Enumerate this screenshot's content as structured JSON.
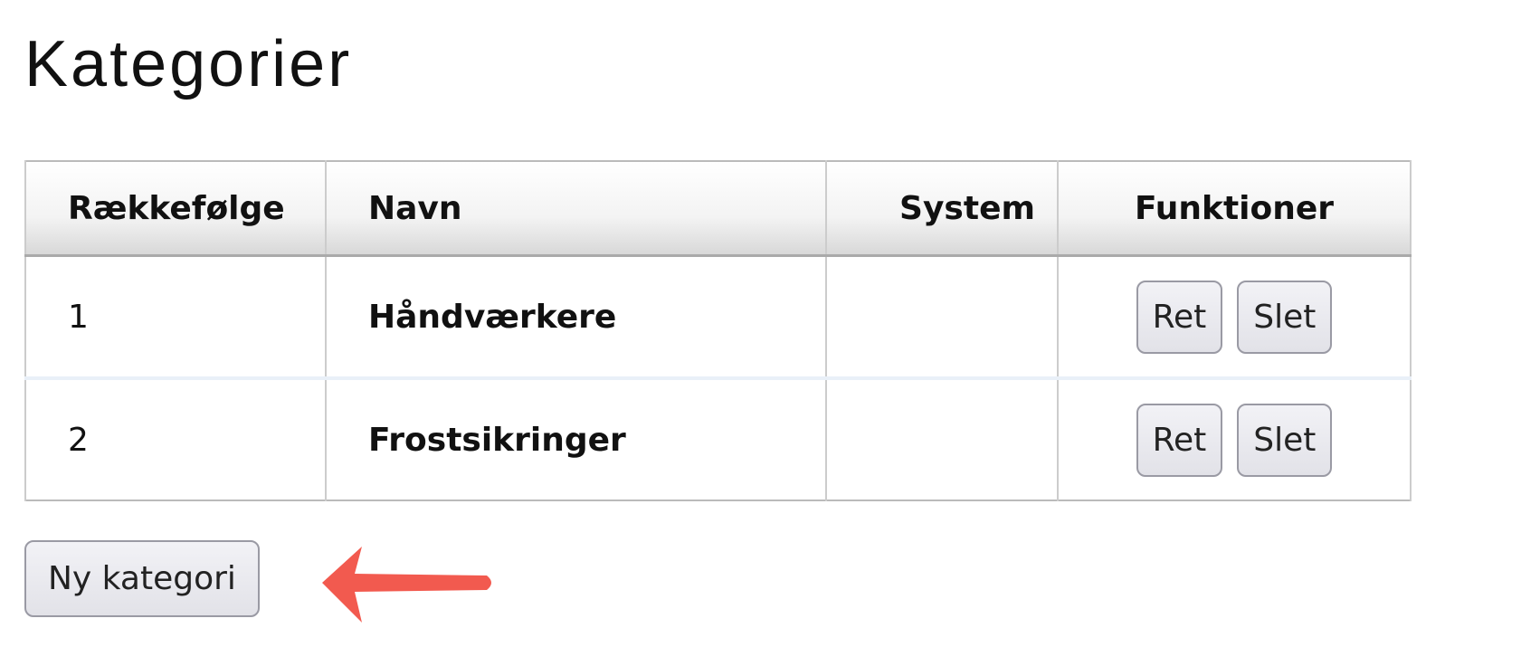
{
  "page": {
    "title": "Kategorier"
  },
  "table": {
    "headers": [
      "Rækkefølge",
      "Navn",
      "System",
      "Funktioner"
    ],
    "rows": [
      {
        "order": "1",
        "name": "Håndværkere",
        "system": "",
        "edit_label": "Ret",
        "delete_label": "Slet"
      },
      {
        "order": "2",
        "name": "Frostsikringer",
        "system": "",
        "edit_label": "Ret",
        "delete_label": "Slet"
      }
    ]
  },
  "actions": {
    "new_category_label": "Ny kategori"
  },
  "annotation": {
    "arrow_color": "#f25a4f",
    "icon": "arrow-left-icon"
  }
}
